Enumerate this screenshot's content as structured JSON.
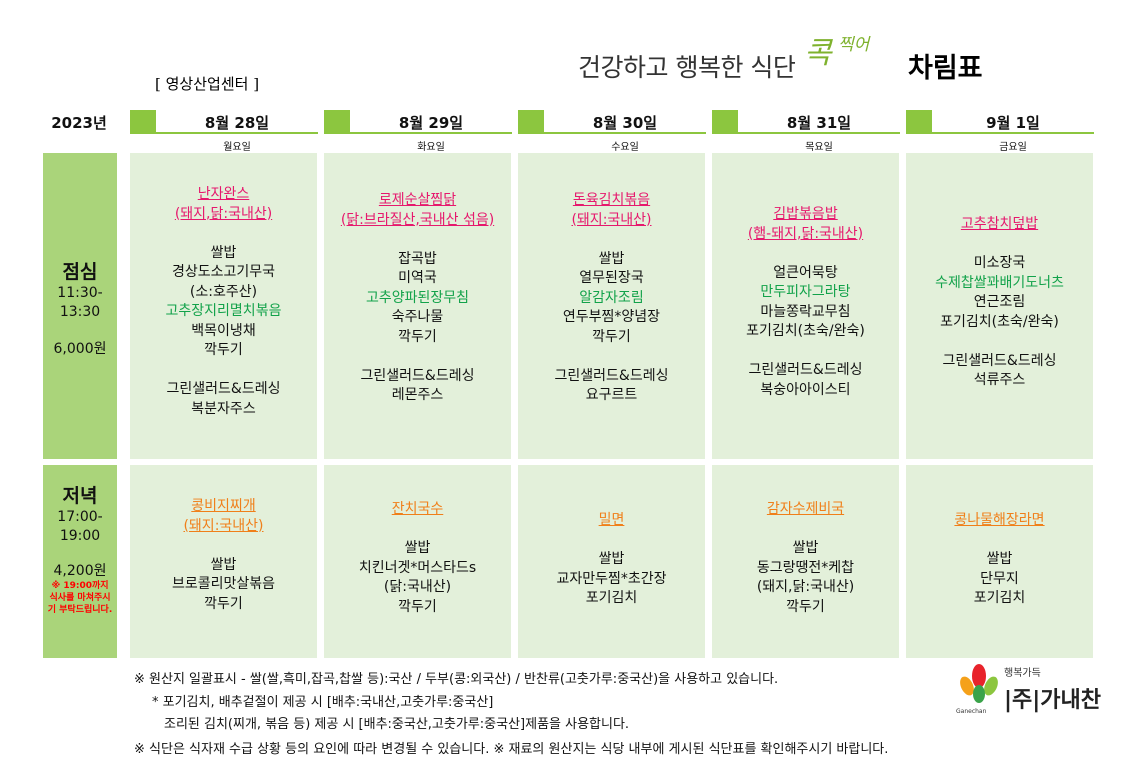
{
  "header": {
    "title_prefix": "건강하고 행복한 식단",
    "title_brand": "콕",
    "title_brand_small": "찍어",
    "title_main": "차림표",
    "center_name": "[ 영상산업센터 ]"
  },
  "year": "2023년",
  "days": [
    {
      "date": "8월 28일",
      "weekday": "월요일"
    },
    {
      "date": "8월 29일",
      "weekday": "화요일"
    },
    {
      "date": "8월 30일",
      "weekday": "수요일"
    },
    {
      "date": "8월 31일",
      "weekday": "목요일"
    },
    {
      "date": "9월 1일",
      "weekday": "금요일"
    }
  ],
  "lunch": {
    "label": "점심",
    "time_start": "11:30-",
    "time_end": "13:30",
    "price": "6,000원"
  },
  "dinner": {
    "label": "저녁",
    "time_start": "17:00-",
    "time_end": "19:00",
    "price": "4,200원",
    "note": "※ 19:00까지 식사를 마쳐주시기 부탁드립니다."
  },
  "menus": {
    "lunch": [
      [
        "난자완스",
        "(돼지,닭:국내산)",
        "",
        "쌀밥",
        "경상도소고기무국",
        "(소:호주산)",
        "고추장지리멸치볶음",
        "백목이냉채",
        "깍두기",
        "",
        "그린샐러드&드레싱",
        "복분자주스"
      ],
      [
        "로제순살찜닭",
        "(닭:브라질산,국내산 섞음)",
        "",
        "잡곡밥",
        "미역국",
        "고추양파된장무침",
        "숙주나물",
        "깍두기",
        "",
        "그린샐러드&드레싱",
        "레몬주스"
      ],
      [
        "돈육김치볶음",
        "(돼지:국내산)",
        "",
        "쌀밥",
        "열무된장국",
        "알감자조림",
        "연두부찜*양념장",
        "깍두기",
        "",
        "그린샐러드&드레싱",
        "요구르트"
      ],
      [
        "김밥볶음밥",
        "(햄-돼지,닭:국내산)",
        "",
        "얼큰어묵탕",
        "만두피자그라탕",
        "마늘쫑락교무침",
        "포기김치(초숙/완숙)",
        "",
        "그린샐러드&드레싱",
        "복숭아아이스티"
      ],
      [
        "고추참치덮밥",
        "",
        "미소장국",
        "수제찹쌀꽈배기도너츠",
        "연근조림",
        "포기김치(초숙/완숙)",
        "",
        "그린샐러드&드레싱",
        "석류주스"
      ]
    ],
    "dinner": [
      [
        "콩비지찌개",
        "(돼지:국내산)",
        "",
        "쌀밥",
        "브로콜리맛살볶음",
        "깍두기"
      ],
      [
        "잔치국수",
        "",
        "쌀밥",
        "치킨너겟*머스타드s",
        "(닭:국내산)",
        "깍두기"
      ],
      [
        "밀면",
        "",
        "쌀밥",
        "교자만두찜*초간장",
        "포기김치"
      ],
      [
        "감자수제비국",
        "",
        "쌀밥",
        "동그랑땡전*케찹",
        "(돼지,닭:국내산)",
        "깍두기"
      ],
      [
        "콩나물해장라면",
        "",
        "쌀밥",
        "단무지",
        "포기김치"
      ]
    ]
  },
  "footer": {
    "line1": "※ 원산지 일괄표시 - 쌀(쌀,흑미,잡곡,찹쌀 등):국산 / 두부(콩:외국산) / 반찬류(고춧가루:중국산)을 사용하고 있습니다.",
    "line2": "* 포기김치, 배추겉절이 제공 시 [배추:국내산,고춧가루:중국산]",
    "line3": "조리된 김치(찌개, 볶음 등) 제공 시  [배추:중국산,고춧가루:중국산]제품을 사용합니다.",
    "line4": "※ 식단은 식자재 수급 상황 등의 요인에 따라 변경될 수 있습니다. ※ 재료의 원산지는 식당 내부에 게시된 식단표를 확인해주시기 바랍니다."
  },
  "logo": {
    "text": "|주|가내찬",
    "small": "행복가득",
    "en": "Ganechan"
  }
}
